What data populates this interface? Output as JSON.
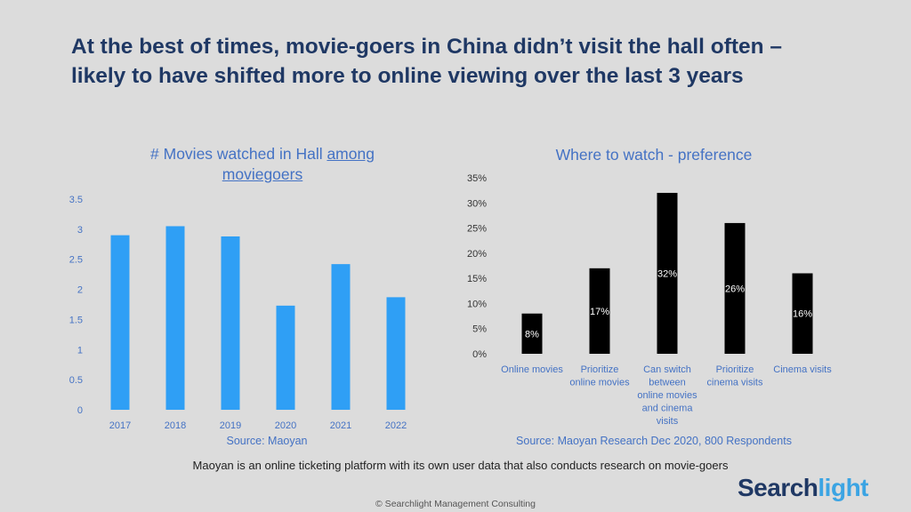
{
  "headline": {
    "line1": "At the best of times, movie-goers in China didn’t visit the hall often –",
    "line2": "likely to have shifted more to online viewing over the last 3 years"
  },
  "left_chart": {
    "title_part1": "# Movies watched in Hall ",
    "title_part2": "among",
    "title_part3": "moviegoers",
    "source": "Source: Maoyan"
  },
  "right_chart": {
    "title": "Where to watch - preference",
    "source": "Source: Maoyan Research Dec 2020, 800 Respondents"
  },
  "note": "Maoyan is an online ticketing  platform with its own user data that also conducts research on movie-goers",
  "logo": {
    "part1": "Search",
    "part2": "light"
  },
  "copyright": "©   Searchlight Management  Consulting",
  "colors": {
    "bar_left": "#2f9ff5",
    "bar_right": "#000000",
    "title": "#1f3864",
    "accent": "#4472c4"
  },
  "chart_data": [
    {
      "type": "bar",
      "title": "# Movies watched in Hall among moviegoers",
      "categories": [
        "2017",
        "2018",
        "2019",
        "2020",
        "2021",
        "2022"
      ],
      "values": [
        2.9,
        3.05,
        2.88,
        1.73,
        2.42,
        1.87
      ],
      "ylim": [
        0,
        3.5
      ],
      "yticks": [
        "0",
        "0.5",
        "1",
        "1.5",
        "2",
        "2.5",
        "3",
        "3.5"
      ],
      "grid": false
    },
    {
      "type": "bar",
      "title": "Where to watch - preference",
      "categories": [
        [
          "Online movies"
        ],
        [
          "Prioritize",
          "online movies"
        ],
        [
          "Can switch",
          "between",
          "online movies",
          "and cinema",
          "visits"
        ],
        [
          "Prioritize",
          "cinema visits"
        ],
        [
          "Cinema visits"
        ]
      ],
      "values": [
        8,
        17,
        32,
        26,
        16
      ],
      "data_labels": [
        "8%",
        "17%",
        "32%",
        "26%",
        "16%"
      ],
      "ylim": [
        0,
        35
      ],
      "yticks": [
        "0%",
        "5%",
        "10%",
        "15%",
        "20%",
        "25%",
        "30%",
        "35%"
      ],
      "grid": false
    }
  ]
}
